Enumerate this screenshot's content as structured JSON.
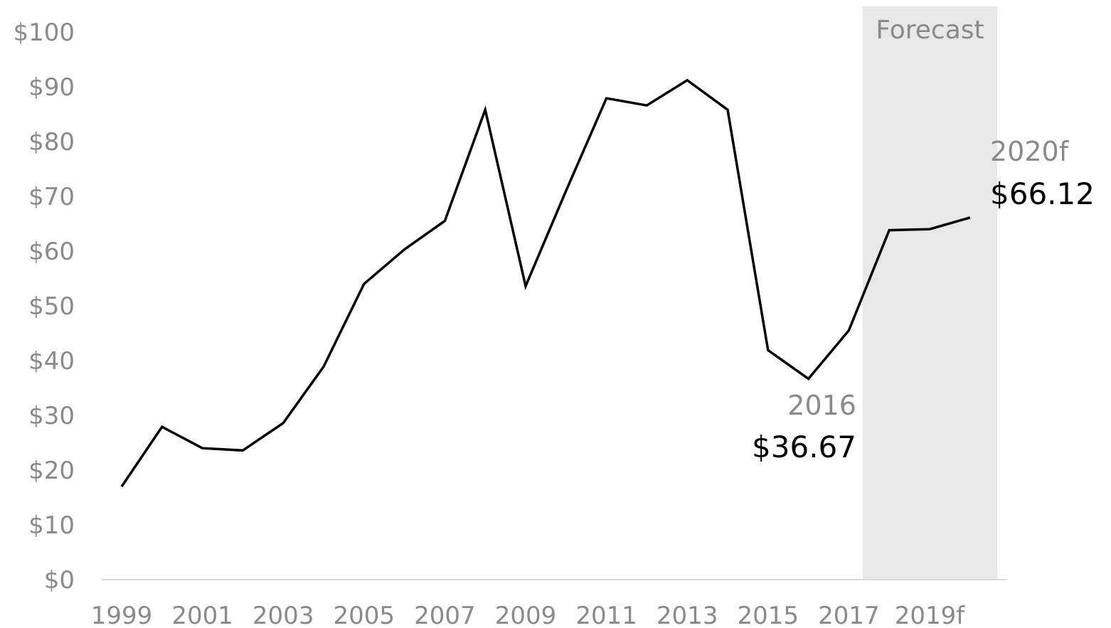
{
  "colors": {
    "line": "#000000",
    "forecast_band": "#e8e8e8",
    "axis_text": "#8a8a8a",
    "axis_line": "#d9d9d9",
    "value_text": "#000000"
  },
  "chart_data": {
    "type": "line",
    "title": "",
    "xlabel": "",
    "ylabel": "",
    "x": [
      1999,
      2000,
      2001,
      2002,
      2003,
      2004,
      2005,
      2006,
      2007,
      2008,
      2009,
      2010,
      2011,
      2012,
      2013,
      2014,
      2015,
      2016,
      2017,
      2018,
      2019,
      2020
    ],
    "series": [
      {
        "values": [
          17.0,
          27.9,
          24.0,
          23.6,
          28.6,
          38.9,
          54.0,
          60.3,
          65.5,
          85.8,
          53.6,
          71.0,
          87.9,
          86.6,
          91.2,
          85.8,
          41.9,
          36.67,
          45.5,
          63.8,
          64.0,
          66.12
        ]
      }
    ],
    "ylim": [
      0,
      100
    ],
    "xlim": [
      1999,
      2020
    ],
    "y_ticks": [
      0,
      10,
      20,
      30,
      40,
      50,
      60,
      70,
      80,
      90,
      100
    ],
    "y_tick_labels": [
      "$0",
      "$10",
      "$20",
      "$30",
      "$40",
      "$50",
      "$60",
      "$70",
      "$80",
      "$90",
      "$100"
    ],
    "x_tick_labels": [
      {
        "x": 1999,
        "label": "1999"
      },
      {
        "x": 2001,
        "label": "2001"
      },
      {
        "x": 2003,
        "label": "2003"
      },
      {
        "x": 2005,
        "label": "2005"
      },
      {
        "x": 2007,
        "label": "2007"
      },
      {
        "x": 2009,
        "label": "2009"
      },
      {
        "x": 2011,
        "label": "2011"
      },
      {
        "x": 2013,
        "label": "2013"
      },
      {
        "x": 2015,
        "label": "2015"
      },
      {
        "x": 2017,
        "label": "2017"
      },
      {
        "x": 2019,
        "label": "2019f"
      }
    ],
    "grid": false,
    "forecast_region": {
      "label": "Forecast",
      "x_start": 2017,
      "x_end": 2020
    },
    "annotations": [
      {
        "x": 2016,
        "year_text": "2016",
        "value_text": "$36.67"
      },
      {
        "x": 2020,
        "year_text": "2020f",
        "value_text": "$66.12"
      }
    ]
  }
}
